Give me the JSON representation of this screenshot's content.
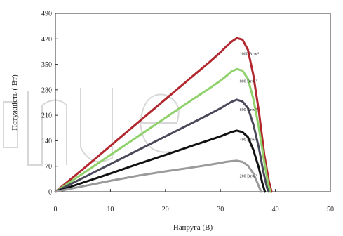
{
  "chart_data": {
    "type": "line",
    "title": "",
    "xlabel": "Напруга (В)",
    "ylabel": "Потужність ( Вт)",
    "xlim": [
      0,
      50
    ],
    "ylim": [
      0,
      490
    ],
    "x_ticks": [
      "0",
      "10",
      "20",
      "30",
      "40",
      "50"
    ],
    "y_ticks": [
      "0",
      "70",
      "140",
      "210",
      "280",
      "350",
      "420",
      "490"
    ],
    "grid": false,
    "series": [
      {
        "name": "1000 Вт/м²",
        "color": "#b2262e",
        "points": [
          [
            0,
            0
          ],
          [
            5,
            62
          ],
          [
            10,
            126
          ],
          [
            15,
            190
          ],
          [
            20,
            254
          ],
          [
            25,
            318
          ],
          [
            28,
            356
          ],
          [
            30,
            383
          ],
          [
            31,
            398
          ],
          [
            32,
            412
          ],
          [
            33,
            422
          ],
          [
            34,
            418
          ],
          [
            35,
            390
          ],
          [
            36,
            320
          ],
          [
            37,
            220
          ],
          [
            38,
            100
          ],
          [
            38.8,
            30
          ],
          [
            39.3,
            0
          ]
        ]
      },
      {
        "name": "800 Вт/м²",
        "color": "#8fd16a",
        "points": [
          [
            0,
            0
          ],
          [
            5,
            50
          ],
          [
            10,
            101
          ],
          [
            15,
            152
          ],
          [
            20,
            203
          ],
          [
            25,
            254
          ],
          [
            28,
            284
          ],
          [
            30,
            305
          ],
          [
            31,
            317
          ],
          [
            32,
            330
          ],
          [
            33,
            337
          ],
          [
            34,
            333
          ],
          [
            35,
            310
          ],
          [
            36,
            255
          ],
          [
            37,
            175
          ],
          [
            38,
            80
          ],
          [
            38.7,
            20
          ],
          [
            39.1,
            0
          ]
        ]
      },
      {
        "name": "600 Вт/м²",
        "color": "#4a4a5a",
        "points": [
          [
            0,
            0
          ],
          [
            5,
            38
          ],
          [
            10,
            76
          ],
          [
            15,
            114
          ],
          [
            20,
            152
          ],
          [
            25,
            190
          ],
          [
            28,
            213
          ],
          [
            30,
            229
          ],
          [
            31,
            238
          ],
          [
            32,
            247
          ],
          [
            33,
            253
          ],
          [
            34,
            248
          ],
          [
            35,
            230
          ],
          [
            36,
            185
          ],
          [
            37,
            120
          ],
          [
            37.8,
            55
          ],
          [
            38.5,
            10
          ],
          [
            38.8,
            0
          ]
        ]
      },
      {
        "name": "400 Вт/м²",
        "color": "#111111",
        "points": [
          [
            0,
            0
          ],
          [
            5,
            25
          ],
          [
            10,
            50
          ],
          [
            15,
            76
          ],
          [
            20,
            101
          ],
          [
            25,
            127
          ],
          [
            28,
            142
          ],
          [
            30,
            152
          ],
          [
            31,
            158
          ],
          [
            32,
            164
          ],
          [
            33,
            168
          ],
          [
            34,
            164
          ],
          [
            35,
            150
          ],
          [
            36,
            115
          ],
          [
            37,
            65
          ],
          [
            37.6,
            25
          ],
          [
            38.1,
            0
          ]
        ]
      },
      {
        "name": "200 Вт/м²",
        "color": "#9a9a9a",
        "points": [
          [
            0,
            0
          ],
          [
            5,
            15
          ],
          [
            10,
            30
          ],
          [
            15,
            44
          ],
          [
            20,
            56
          ],
          [
            25,
            67
          ],
          [
            28,
            74
          ],
          [
            30,
            79
          ],
          [
            31,
            82
          ],
          [
            32,
            84
          ],
          [
            33,
            85
          ],
          [
            34,
            82
          ],
          [
            35,
            72
          ],
          [
            36,
            50
          ],
          [
            36.8,
            22
          ],
          [
            37.4,
            0
          ]
        ]
      }
    ],
    "series_labels": [
      {
        "text": "1000 Вт/м²",
        "x": 33.5,
        "y": 375
      },
      {
        "text": "800 Вт/м²",
        "x": 33.5,
        "y": 300
      },
      {
        "text": "600 Вт/м²",
        "x": 33.5,
        "y": 222
      },
      {
        "text": "400 Вт/м²",
        "x": 33.5,
        "y": 140
      },
      {
        "text": "200 Вт/м²",
        "x": 33.5,
        "y": 40
      }
    ]
  }
}
